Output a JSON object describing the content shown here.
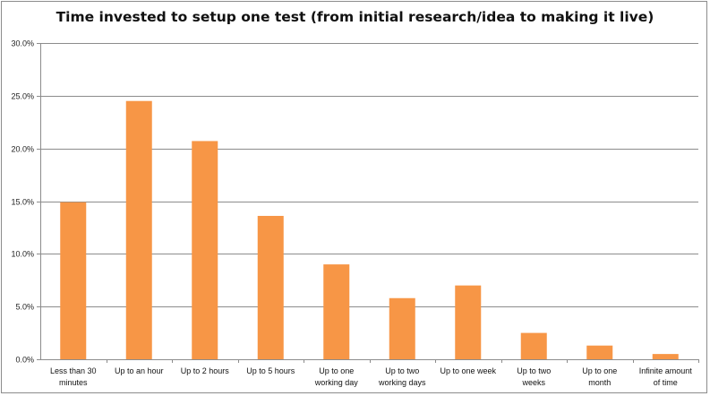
{
  "chart_data": {
    "type": "bar",
    "title": "Time invested to setup one test (from initial research/idea to making it live)",
    "xlabel": "",
    "ylabel": "",
    "categories": [
      [
        "Less than 30",
        "minutes"
      ],
      [
        "Up to an hour"
      ],
      [
        "Up to 2 hours"
      ],
      [
        "Up to 5 hours"
      ],
      [
        "Up to one",
        "working day"
      ],
      [
        "Up to two",
        "working days"
      ],
      [
        "Up to one week"
      ],
      [
        "Up to two",
        "weeks"
      ],
      [
        "Up to one",
        "month"
      ],
      [
        "Infinite amount",
        "of time"
      ]
    ],
    "values": [
      14.9,
      24.5,
      20.7,
      13.6,
      9.0,
      5.8,
      7.0,
      2.5,
      1.3,
      0.5
    ],
    "ylim": [
      0,
      30
    ],
    "yticks": [
      0,
      5,
      10,
      15,
      20,
      25,
      30
    ],
    "ytick_labels": [
      "0.0%",
      "5.0%",
      "10.0%",
      "15.0%",
      "20.0%",
      "25.0%",
      "30.0%"
    ],
    "grid": true,
    "legend": "none",
    "bar_color": "#F79646",
    "grid_color": "#8c8c8c"
  }
}
